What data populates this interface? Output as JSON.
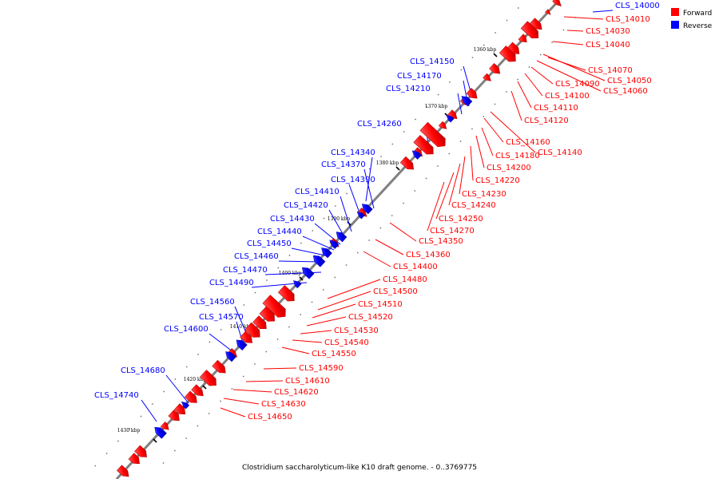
{
  "caption": "Clostridium saccharolyticum-like K10 draft genome. - 0..3769775",
  "legend": [
    {
      "label": "Forward",
      "color": "#ff0000"
    },
    {
      "label": "Reverse",
      "color": "#0000ff"
    }
  ],
  "colors": {
    "forward": "#ff0000",
    "reverse": "#0000ff",
    "backbone": "#808080"
  },
  "scale_marks": [
    "1360 kbp",
    "1370 kbp",
    "1380 kbp",
    "1390 kbp",
    "1400 kbp",
    "1410 kbp",
    "1420 kbp",
    "1430 kbp"
  ],
  "forward_labels": [
    "CLS_14010",
    "CLS_14030",
    "CLS_14040",
    "CLS_14050",
    "CLS_14060",
    "CLS_14070",
    "CLS_14090",
    "CLS_14100",
    "CLS_14110",
    "CLS_14120",
    "CLS_14140",
    "CLS_14160",
    "CLS_14180",
    "CLS_14200",
    "CLS_14220",
    "CLS_14230",
    "CLS_14240",
    "CLS_14250",
    "CLS_14270",
    "CLS_14350",
    "CLS_14360",
    "CLS_14400",
    "CLS_14480",
    "CLS_14500",
    "CLS_14510",
    "CLS_14520",
    "CLS_14530",
    "CLS_14540",
    "CLS_14550",
    "CLS_14590",
    "CLS_14610",
    "CLS_14620",
    "CLS_14630",
    "CLS_14650"
  ],
  "reverse_labels": [
    "CLS_14000",
    "CLS_14150",
    "CLS_14170",
    "CLS_14210",
    "CLS_14260",
    "CLS_14340",
    "CLS_14370",
    "CLS_14390",
    "CLS_14410",
    "CLS_14420",
    "CLS_14430",
    "CLS_14440",
    "CLS_14450",
    "CLS_14460",
    "CLS_14470",
    "CLS_14490",
    "CLS_14560",
    "CLS_14570",
    "CLS_14600",
    "CLS_14680",
    "CLS_14740"
  ]
}
